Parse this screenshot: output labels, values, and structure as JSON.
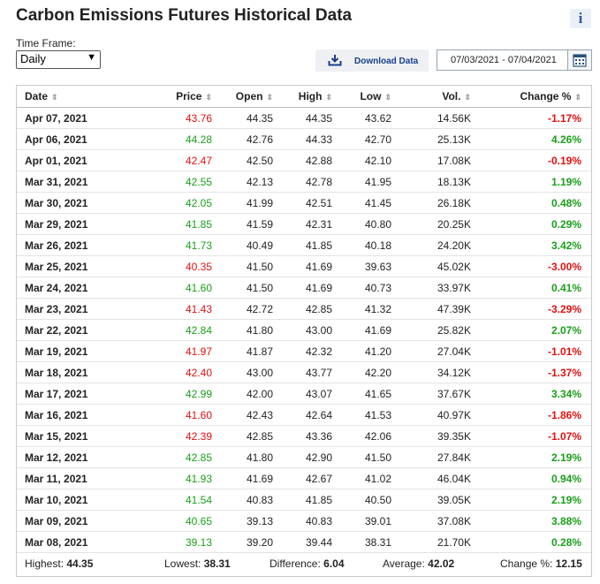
{
  "page": {
    "title": "Carbon Emissions Futures Historical Data",
    "info_icon": "i",
    "timeframe_label": "Time Frame:",
    "timeframe_value": "Daily",
    "download_label": "Download Data",
    "date_range": "07/03/2021 - 07/04/2021"
  },
  "colors": {
    "up": "#1a9e1a",
    "down": "#dd1111",
    "link": "#1a3f8a"
  },
  "table": {
    "headers": [
      "Date",
      "Price",
      "Open",
      "High",
      "Low",
      "Vol.",
      "Change %"
    ],
    "rows": [
      {
        "date": "Apr 07, 2021",
        "price": "43.76",
        "open": "44.35",
        "high": "44.35",
        "low": "43.62",
        "vol": "14.56K",
        "change": "-1.17%",
        "dir": "down"
      },
      {
        "date": "Apr 06, 2021",
        "price": "44.28",
        "open": "42.76",
        "high": "44.33",
        "low": "42.70",
        "vol": "25.13K",
        "change": "4.26%",
        "dir": "up"
      },
      {
        "date": "Apr 01, 2021",
        "price": "42.47",
        "open": "42.50",
        "high": "42.88",
        "low": "42.10",
        "vol": "17.08K",
        "change": "-0.19%",
        "dir": "down"
      },
      {
        "date": "Mar 31, 2021",
        "price": "42.55",
        "open": "42.13",
        "high": "42.78",
        "low": "41.95",
        "vol": "18.13K",
        "change": "1.19%",
        "dir": "up"
      },
      {
        "date": "Mar 30, 2021",
        "price": "42.05",
        "open": "41.99",
        "high": "42.51",
        "low": "41.45",
        "vol": "26.18K",
        "change": "0.48%",
        "dir": "up"
      },
      {
        "date": "Mar 29, 2021",
        "price": "41.85",
        "open": "41.59",
        "high": "42.31",
        "low": "40.80",
        "vol": "20.25K",
        "change": "0.29%",
        "dir": "up"
      },
      {
        "date": "Mar 26, 2021",
        "price": "41.73",
        "open": "40.49",
        "high": "41.85",
        "low": "40.18",
        "vol": "24.20K",
        "change": "3.42%",
        "dir": "up"
      },
      {
        "date": "Mar 25, 2021",
        "price": "40.35",
        "open": "41.50",
        "high": "41.69",
        "low": "39.63",
        "vol": "45.02K",
        "change": "-3.00%",
        "dir": "down"
      },
      {
        "date": "Mar 24, 2021",
        "price": "41.60",
        "open": "41.50",
        "high": "41.69",
        "low": "40.73",
        "vol": "33.97K",
        "change": "0.41%",
        "dir": "up"
      },
      {
        "date": "Mar 23, 2021",
        "price": "41.43",
        "open": "42.72",
        "high": "42.85",
        "low": "41.32",
        "vol": "47.39K",
        "change": "-3.29%",
        "dir": "down"
      },
      {
        "date": "Mar 22, 2021",
        "price": "42.84",
        "open": "41.80",
        "high": "43.00",
        "low": "41.69",
        "vol": "25.82K",
        "change": "2.07%",
        "dir": "up"
      },
      {
        "date": "Mar 19, 2021",
        "price": "41.97",
        "open": "41.87",
        "high": "42.32",
        "low": "41.20",
        "vol": "27.04K",
        "change": "-1.01%",
        "dir": "down"
      },
      {
        "date": "Mar 18, 2021",
        "price": "42.40",
        "open": "43.00",
        "high": "43.77",
        "low": "42.20",
        "vol": "34.12K",
        "change": "-1.37%",
        "dir": "down"
      },
      {
        "date": "Mar 17, 2021",
        "price": "42.99",
        "open": "42.00",
        "high": "43.07",
        "low": "41.65",
        "vol": "37.67K",
        "change": "3.34%",
        "dir": "up"
      },
      {
        "date": "Mar 16, 2021",
        "price": "41.60",
        "open": "42.43",
        "high": "42.64",
        "low": "41.53",
        "vol": "40.97K",
        "change": "-1.86%",
        "dir": "down"
      },
      {
        "date": "Mar 15, 2021",
        "price": "42.39",
        "open": "42.85",
        "high": "43.36",
        "low": "42.06",
        "vol": "39.35K",
        "change": "-1.07%",
        "dir": "down"
      },
      {
        "date": "Mar 12, 2021",
        "price": "42.85",
        "open": "41.80",
        "high": "42.90",
        "low": "41.50",
        "vol": "27.84K",
        "change": "2.19%",
        "dir": "up"
      },
      {
        "date": "Mar 11, 2021",
        "price": "41.93",
        "open": "41.69",
        "high": "42.67",
        "low": "41.02",
        "vol": "46.04K",
        "change": "0.94%",
        "dir": "up"
      },
      {
        "date": "Mar 10, 2021",
        "price": "41.54",
        "open": "40.83",
        "high": "41.85",
        "low": "40.50",
        "vol": "39.05K",
        "change": "2.19%",
        "dir": "up"
      },
      {
        "date": "Mar 09, 2021",
        "price": "40.65",
        "open": "39.13",
        "high": "40.83",
        "low": "39.01",
        "vol": "37.08K",
        "change": "3.88%",
        "dir": "up"
      },
      {
        "date": "Mar 08, 2021",
        "price": "39.13",
        "open": "39.20",
        "high": "39.44",
        "low": "38.31",
        "vol": "21.70K",
        "change": "0.28%",
        "dir": "up"
      }
    ]
  },
  "summary": {
    "highest_label": "Highest:",
    "highest": "44.35",
    "lowest_label": "Lowest:",
    "lowest": "38.31",
    "difference_label": "Difference:",
    "difference": "6.04",
    "average_label": "Average:",
    "average": "42.02",
    "change_label": "Change %:",
    "change": "12.15"
  }
}
